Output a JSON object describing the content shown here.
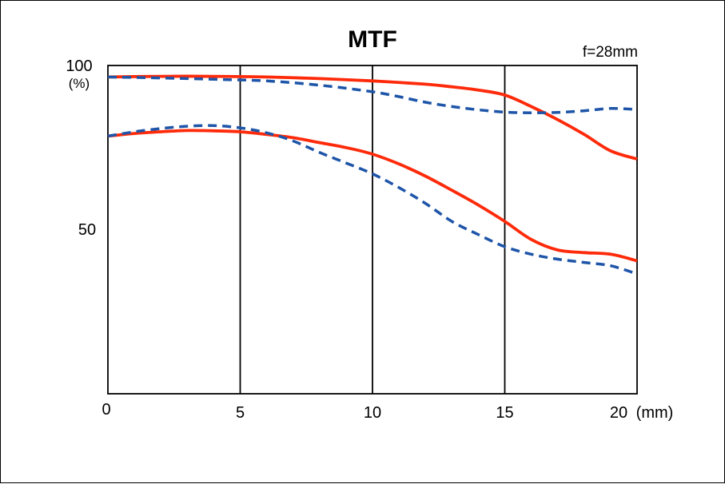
{
  "chart_data": {
    "type": "line",
    "title": "MTF",
    "annotation": "f=28mm",
    "ylabel_unit": "(%)",
    "xlabel_unit": "(mm)",
    "x_ticks": [
      "0",
      "5",
      "10",
      "15",
      "20"
    ],
    "y_ticks": [
      "100",
      "50"
    ],
    "xlim": [
      0,
      20
    ],
    "ylim": [
      0,
      100
    ],
    "grid": "vertical",
    "series": [
      {
        "style": "solid",
        "color": "#ff2a0a",
        "points": [
          [
            0,
            96.5
          ],
          [
            2,
            96.7
          ],
          [
            4,
            96.7
          ],
          [
            6,
            96.5
          ],
          [
            8,
            96.0
          ],
          [
            10,
            95.3
          ],
          [
            12,
            94.3
          ],
          [
            13,
            93.5
          ],
          [
            14,
            92.5
          ],
          [
            15,
            91.0
          ],
          [
            16,
            87.5
          ],
          [
            17,
            83.5
          ],
          [
            18,
            79.0
          ],
          [
            19,
            74.0
          ],
          [
            20,
            71.5
          ]
        ]
      },
      {
        "style": "dashed",
        "color": "#1e55a8",
        "points": [
          [
            0,
            96.5
          ],
          [
            2,
            96.2
          ],
          [
            4,
            95.8
          ],
          [
            6,
            95.3
          ],
          [
            8,
            94.0
          ],
          [
            10,
            92.0
          ],
          [
            11,
            90.5
          ],
          [
            12,
            88.8
          ],
          [
            13,
            87.5
          ],
          [
            14,
            86.5
          ],
          [
            15,
            85.8
          ],
          [
            16,
            85.6
          ],
          [
            17,
            85.7
          ],
          [
            18,
            86.2
          ],
          [
            19,
            86.9
          ],
          [
            20,
            86.6
          ]
        ]
      },
      {
        "style": "solid",
        "color": "#ff2a0a",
        "points": [
          [
            0,
            78.5
          ],
          [
            1,
            79.3
          ],
          [
            2,
            79.8
          ],
          [
            3,
            80.2
          ],
          [
            4,
            80.1
          ],
          [
            5,
            79.8
          ],
          [
            6,
            79.0
          ],
          [
            7,
            78.0
          ],
          [
            8,
            76.5
          ],
          [
            9,
            75.0
          ],
          [
            10,
            73.0
          ],
          [
            11,
            70.0
          ],
          [
            12,
            66.3
          ],
          [
            13,
            62.0
          ],
          [
            14,
            57.5
          ],
          [
            15,
            52.5
          ],
          [
            16,
            47.0
          ],
          [
            17,
            43.8
          ],
          [
            18,
            43.0
          ],
          [
            19,
            42.5
          ],
          [
            20,
            40.5
          ]
        ]
      },
      {
        "style": "dashed",
        "color": "#1e55a8",
        "points": [
          [
            0,
            78.5
          ],
          [
            1,
            79.8
          ],
          [
            2,
            80.8
          ],
          [
            3,
            81.5
          ],
          [
            4,
            81.7
          ],
          [
            5,
            81.0
          ],
          [
            6,
            79.5
          ],
          [
            7,
            77.0
          ],
          [
            8,
            73.5
          ],
          [
            9,
            70.3
          ],
          [
            10,
            67.0
          ],
          [
            11,
            62.8
          ],
          [
            12,
            58.0
          ],
          [
            13,
            52.5
          ],
          [
            14,
            48.5
          ],
          [
            15,
            44.8
          ],
          [
            16,
            42.5
          ],
          [
            17,
            41.0
          ],
          [
            18,
            40.0
          ],
          [
            19,
            39.0
          ],
          [
            20,
            36.5
          ]
        ]
      }
    ]
  }
}
